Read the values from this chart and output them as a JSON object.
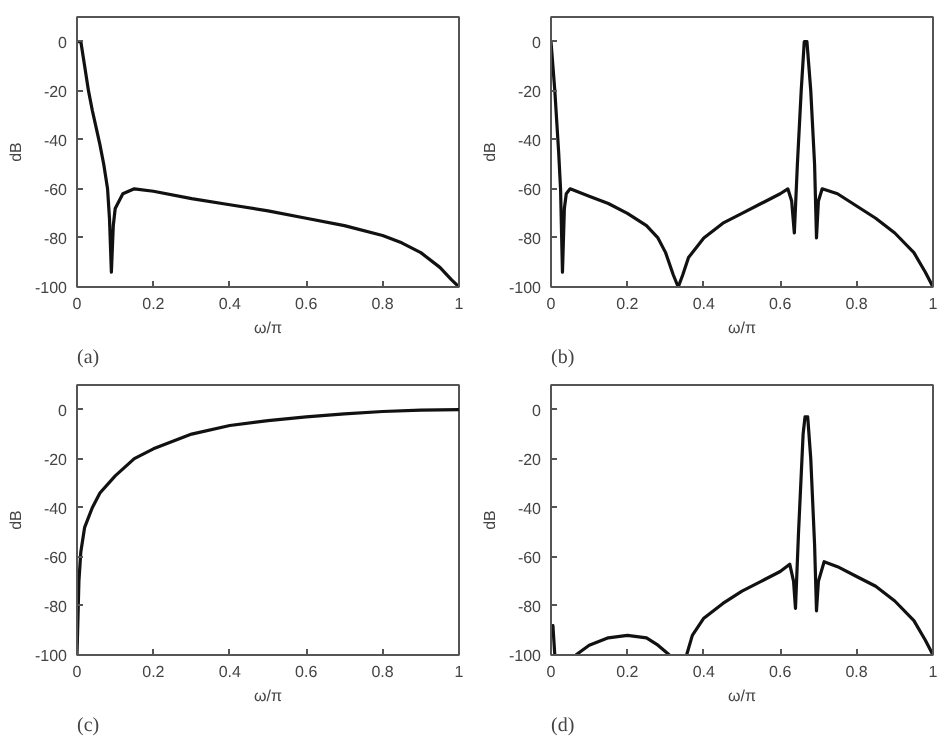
{
  "chart_data": [
    {
      "type": "line",
      "xlabel": "ω/π",
      "ylabel": "dB",
      "annotations": [
        "(a)"
      ],
      "xlim": [
        0,
        1
      ],
      "ylim": [
        -100,
        10
      ],
      "xticks": [
        0,
        0.2,
        0.4,
        0.6,
        0.8,
        1
      ],
      "yticks": [
        -100,
        -80,
        -60,
        -40,
        -20,
        0
      ],
      "series": [
        {
          "color": "#111111",
          "x": [
            0,
            0.005,
            0.01,
            0.02,
            0.03,
            0.04,
            0.05,
            0.06,
            0.07,
            0.08,
            0.085,
            0.09,
            0.095,
            0.1,
            0.12,
            0.15,
            0.2,
            0.3,
            0.4,
            0.5,
            0.6,
            0.7,
            0.8,
            0.85,
            0.9,
            0.95,
            0.98,
            1
          ],
          "values": [
            0,
            0,
            0,
            -10,
            -20,
            -28,
            -35,
            -42,
            -50,
            -60,
            -72,
            -94,
            -75,
            -68,
            -62,
            -60,
            -61,
            -64,
            -66.5,
            -69,
            -72,
            -75,
            -79,
            -82,
            -86,
            -92,
            -97,
            -100
          ]
        }
      ]
    },
    {
      "type": "line",
      "xlabel": "ω/π",
      "ylabel": "dB",
      "annotations": [
        "(b)"
      ],
      "xlim": [
        0,
        1
      ],
      "ylim": [
        -100,
        10
      ],
      "xticks": [
        0,
        0.2,
        0.4,
        0.6,
        0.8,
        1
      ],
      "yticks": [
        -100,
        -80,
        -60,
        -40,
        -20,
        0
      ],
      "series": [
        {
          "color": "#111111",
          "x": [
            0,
            0.01,
            0.02,
            0.025,
            0.03,
            0.035,
            0.04,
            0.05,
            0.1,
            0.15,
            0.2,
            0.25,
            0.28,
            0.3,
            0.32,
            0.333,
            0.345,
            0.36,
            0.4,
            0.45,
            0.5,
            0.55,
            0.6,
            0.62,
            0.63,
            0.637,
            0.645,
            0.655,
            0.663,
            0.67,
            0.68,
            0.69,
            0.695,
            0.7,
            0.71,
            0.75,
            0.8,
            0.85,
            0.9,
            0.95,
            0.98,
            1
          ],
          "values": [
            0,
            -20,
            -45,
            -60,
            -94,
            -68,
            -62,
            -60,
            -63,
            -66,
            -70,
            -75,
            -80,
            -86,
            -95,
            -100,
            -95,
            -88,
            -80,
            -74,
            -70,
            -66,
            -62,
            -60,
            -65,
            -78,
            -50,
            -20,
            0,
            0,
            -20,
            -50,
            -80,
            -65,
            -60,
            -62,
            -67,
            -72,
            -78,
            -86,
            -94,
            -100
          ]
        }
      ]
    },
    {
      "type": "line",
      "xlabel": "ω/π",
      "ylabel": "dB",
      "annotations": [
        "(c)"
      ],
      "xlim": [
        0,
        1
      ],
      "ylim": [
        -100,
        10
      ],
      "xticks": [
        0,
        0.2,
        0.4,
        0.6,
        0.8,
        1
      ],
      "yticks": [
        -100,
        -80,
        -60,
        -40,
        -20,
        0
      ],
      "series": [
        {
          "color": "#111111",
          "x": [
            0,
            0.005,
            0.01,
            0.02,
            0.04,
            0.06,
            0.1,
            0.15,
            0.2,
            0.3,
            0.4,
            0.5,
            0.6,
            0.7,
            0.8,
            0.9,
            1
          ],
          "values": [
            -100,
            -70,
            -58,
            -48,
            -40,
            -34,
            -27,
            -20,
            -16,
            -10,
            -6.5,
            -4.5,
            -3,
            -1.8,
            -0.8,
            -0.2,
            0
          ]
        }
      ]
    },
    {
      "type": "line",
      "xlabel": "ω/π",
      "ylabel": "dB",
      "annotations": [
        "(d)"
      ],
      "xlim": [
        0,
        1
      ],
      "ylim": [
        -100,
        10
      ],
      "xticks": [
        0,
        0.2,
        0.4,
        0.6,
        0.8,
        1
      ],
      "yticks": [
        -100,
        -80,
        -60,
        -40,
        -20,
        0
      ],
      "series": [
        {
          "color": "#111111",
          "x": [
            0,
            0.005,
            0.01,
            0.03,
            0.065,
            0.1,
            0.15,
            0.2,
            0.25,
            0.28,
            0.31,
            0.33,
            0.355,
            0.37,
            0.4,
            0.45,
            0.5,
            0.55,
            0.6,
            0.625,
            0.635,
            0.64,
            0.648,
            0.66,
            0.665,
            0.672,
            0.68,
            0.69,
            0.695,
            0.7,
            0.715,
            0.75,
            0.8,
            0.85,
            0.9,
            0.95,
            0.98,
            1
          ],
          "values": [
            -90,
            -88,
            -100,
            null,
            -100,
            -96,
            -93,
            -92,
            -93,
            -96,
            -100,
            null,
            -100,
            -92,
            -85,
            -79,
            -74,
            -70,
            -66,
            -63,
            -70,
            -81,
            -50,
            -10,
            -3,
            -3,
            -20,
            -55,
            -82,
            -70,
            -62,
            -64,
            -68,
            -72,
            -78,
            -86,
            -94,
            -100
          ]
        }
      ]
    }
  ]
}
